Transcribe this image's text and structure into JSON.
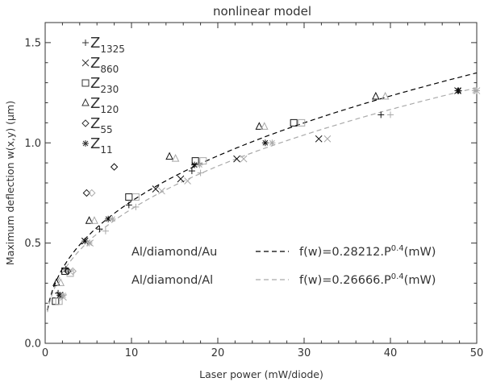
{
  "chart_data": {
    "type": "scatter",
    "title": "nonlinear model",
    "xlabel": "Laser power (mW/diode)",
    "ylabel": "Maximum deflection w(x,y) (μm)",
    "xlim": [
      0,
      50
    ],
    "ylim": [
      0,
      1.6
    ],
    "xticks": [
      0,
      10,
      20,
      30,
      40,
      50
    ],
    "xtick_labels": [
      "0",
      "10",
      "20",
      "30",
      "40",
      "50"
    ],
    "yticks": [
      0.0,
      0.5,
      1.0,
      1.5
    ],
    "ytick_labels": [
      "0.0",
      "0.5",
      "1.0",
      "1.5"
    ],
    "grid": false,
    "legend_position": "top-left",
    "legend": [
      {
        "marker": "plus",
        "main": "Z",
        "sub": "1325"
      },
      {
        "marker": "cross",
        "main": "Z",
        "sub": "860"
      },
      {
        "marker": "square",
        "main": "Z",
        "sub": "230"
      },
      {
        "marker": "triangle",
        "main": "Z",
        "sub": "120"
      },
      {
        "marker": "diamond",
        "main": "Z",
        "sub": "55"
      },
      {
        "marker": "asterisk",
        "main": "Z",
        "sub": "11"
      }
    ],
    "fits": [
      {
        "label": "Al/diamond/Au",
        "formula": "f(w)=0.28212.P",
        "exponent": "0.4",
        "unit": "(mW)",
        "coefficient": 0.28212,
        "power": 0.4,
        "color": "#000000"
      },
      {
        "label": "Al/diamond/Al",
        "formula": "f(w)=0.26666.P",
        "exponent": "0.4",
        "unit": "(mW)",
        "coefficient": 0.26666,
        "power": 0.4,
        "color": "#aaaaaa"
      }
    ],
    "series": [
      {
        "marker": "plus",
        "metal": "Au",
        "x": [
          1.5,
          2.4,
          6.3,
          9.7,
          17.0,
          38.9,
          47.8
        ],
        "y": [
          0.25,
          0.37,
          0.57,
          0.69,
          0.86,
          1.14,
          1.26
        ]
      },
      {
        "marker": "plus",
        "metal": "Al",
        "x": [
          1.8,
          2.8,
          7.0,
          10.5,
          18.0,
          40.0,
          50.0
        ],
        "y": [
          0.24,
          0.36,
          0.56,
          0.68,
          0.85,
          1.14,
          1.26
        ]
      },
      {
        "marker": "cross",
        "metal": "Au",
        "x": [
          1.7,
          4.6,
          12.8,
          15.7,
          22.2,
          31.7,
          47.8
        ],
        "y": [
          0.24,
          0.51,
          0.77,
          0.82,
          0.92,
          1.02,
          1.26
        ]
      },
      {
        "marker": "cross",
        "metal": "Al",
        "x": [
          2.1,
          5.2,
          13.5,
          16.5,
          23.0,
          32.7,
          50.0
        ],
        "y": [
          0.23,
          0.5,
          0.76,
          0.81,
          0.92,
          1.02,
          1.26
        ]
      },
      {
        "marker": "square",
        "metal": "Au",
        "x": [
          1.2,
          2.3,
          9.7,
          17.4,
          28.8
        ],
        "y": [
          0.21,
          0.36,
          0.73,
          0.91,
          1.1
        ]
      },
      {
        "marker": "square",
        "metal": "Al",
        "x": [
          1.6,
          2.9,
          10.5,
          18.3,
          29.7
        ],
        "y": [
          0.21,
          0.35,
          0.73,
          0.91,
          1.1
        ]
      },
      {
        "marker": "triangle",
        "metal": "Au",
        "x": [
          1.3,
          5.1,
          14.4,
          24.8,
          38.3
        ],
        "y": [
          0.3,
          0.61,
          0.93,
          1.08,
          1.23
        ]
      },
      {
        "marker": "triangle",
        "metal": "Al",
        "x": [
          1.8,
          5.7,
          15.1,
          25.4,
          39.4
        ],
        "y": [
          0.3,
          0.61,
          0.92,
          1.08,
          1.23
        ]
      },
      {
        "marker": "diamond",
        "metal": "Au",
        "x": [
          2.6,
          4.8,
          8.0
        ],
        "y": [
          0.36,
          0.75,
          0.88
        ]
      },
      {
        "marker": "diamond",
        "metal": "Al",
        "x": [
          3.2,
          5.4
        ],
        "y": [
          0.36,
          0.75
        ]
      },
      {
        "marker": "asterisk",
        "metal": "Au",
        "x": [
          1.7,
          4.6,
          7.3,
          17.3,
          25.5,
          47.9
        ],
        "y": [
          0.24,
          0.51,
          0.62,
          0.89,
          1.0,
          1.26
        ]
      },
      {
        "marker": "asterisk",
        "metal": "Al",
        "x": [
          2.1,
          5.1,
          7.8,
          17.9,
          26.3,
          49.8
        ],
        "y": [
          0.24,
          0.5,
          0.62,
          0.89,
          1.0,
          1.26
        ]
      }
    ]
  },
  "colors": {
    "axes": "#333333",
    "Au": "#111111",
    "Al": "#a8a8a8"
  }
}
